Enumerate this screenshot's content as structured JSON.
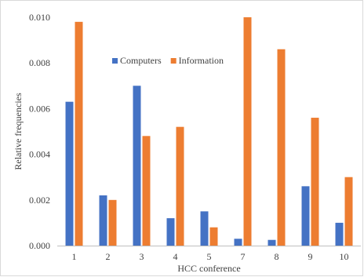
{
  "chart_data": {
    "type": "bar",
    "title": "",
    "xlabel": "HCC conference",
    "ylabel": "Relative frequencies",
    "categories": [
      "1",
      "2",
      "3",
      "4",
      "5",
      "7",
      "8",
      "9",
      "10"
    ],
    "series": [
      {
        "name": "Computers",
        "color": "#4472C4",
        "values": [
          0.0063,
          0.0022,
          0.007,
          0.0012,
          0.0015,
          0.0003,
          0.00025,
          0.0026,
          0.001
        ]
      },
      {
        "name": "Information",
        "color": "#ED7D31",
        "values": [
          0.0098,
          0.002,
          0.0048,
          0.0052,
          0.0008,
          0.01,
          0.0086,
          0.0056,
          0.003
        ]
      }
    ],
    "ylim": [
      0,
      0.01
    ],
    "yticks": [
      "0.000",
      "0.002",
      "0.004",
      "0.006",
      "0.008",
      "0.010"
    ],
    "grid": false,
    "legend_position": "top-center"
  }
}
